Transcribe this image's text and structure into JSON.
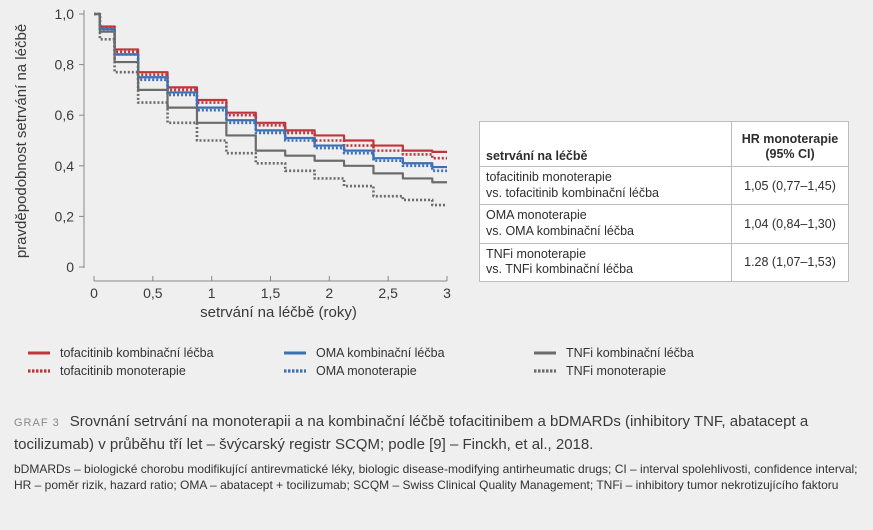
{
  "chart_data": {
    "type": "line",
    "xlabel": "setrvání na léčbě (roky)",
    "ylabel": "pravděpodobnost setrvání na léčbě",
    "xlim": [
      0,
      3
    ],
    "ylim": [
      0,
      1
    ],
    "x_ticks": [
      "0",
      "0,5",
      "1",
      "1,5",
      "2",
      "2,5",
      "3"
    ],
    "y_ticks": [
      "0",
      "0,2",
      "0,4",
      "0,6",
      "0,8",
      "1,0"
    ],
    "grid": false,
    "series": [
      {
        "name": "tofacitinib kombinační léčba",
        "color": "#c0343b",
        "style": "solid",
        "x": [
          0,
          0.1,
          0.25,
          0.5,
          0.75,
          1,
          1.25,
          1.5,
          1.75,
          2,
          2.25,
          2.5,
          2.75,
          3
        ],
        "y": [
          1.0,
          0.95,
          0.86,
          0.77,
          0.71,
          0.66,
          0.61,
          0.57,
          0.54,
          0.52,
          0.5,
          0.48,
          0.46,
          0.455
        ]
      },
      {
        "name": "tofacitinib monoterapie",
        "color": "#c0343b",
        "style": "dotted",
        "x": [
          0,
          0.1,
          0.25,
          0.5,
          0.75,
          1,
          1.25,
          1.5,
          1.75,
          2,
          2.25,
          2.5,
          2.75,
          3
        ],
        "y": [
          1.0,
          0.95,
          0.85,
          0.76,
          0.7,
          0.65,
          0.6,
          0.56,
          0.53,
          0.5,
          0.48,
          0.46,
          0.445,
          0.43
        ]
      },
      {
        "name": "OMA kombinační léčba",
        "color": "#3b6fb6",
        "style": "solid",
        "x": [
          0,
          0.1,
          0.25,
          0.5,
          0.75,
          1,
          1.25,
          1.5,
          1.75,
          2,
          2.25,
          2.5,
          2.75,
          3
        ],
        "y": [
          1.0,
          0.94,
          0.84,
          0.75,
          0.69,
          0.63,
          0.58,
          0.54,
          0.51,
          0.48,
          0.46,
          0.43,
          0.41,
          0.395
        ]
      },
      {
        "name": "OMA monoterapie",
        "color": "#3b6fb6",
        "style": "dotted",
        "x": [
          0,
          0.1,
          0.25,
          0.5,
          0.75,
          1,
          1.25,
          1.5,
          1.75,
          2,
          2.25,
          2.5,
          2.75,
          3
        ],
        "y": [
          1.0,
          0.94,
          0.84,
          0.74,
          0.68,
          0.62,
          0.57,
          0.53,
          0.5,
          0.47,
          0.45,
          0.42,
          0.4,
          0.38
        ]
      },
      {
        "name": "TNFi kombinační léčba",
        "color": "#6b6b6b",
        "style": "solid",
        "x": [
          0,
          0.1,
          0.25,
          0.5,
          0.75,
          1,
          1.25,
          1.5,
          1.75,
          2,
          2.25,
          2.5,
          2.75,
          3
        ],
        "y": [
          1.0,
          0.93,
          0.81,
          0.7,
          0.63,
          0.57,
          0.52,
          0.46,
          0.44,
          0.42,
          0.4,
          0.37,
          0.35,
          0.335
        ]
      },
      {
        "name": "TNFi monoterapie",
        "color": "#6b6b6b",
        "style": "dotted",
        "x": [
          0,
          0.1,
          0.25,
          0.5,
          0.75,
          1,
          1.25,
          1.5,
          1.75,
          2,
          2.25,
          2.5,
          2.75,
          3
        ],
        "y": [
          1.0,
          0.9,
          0.77,
          0.65,
          0.57,
          0.5,
          0.45,
          0.41,
          0.38,
          0.35,
          0.32,
          0.28,
          0.265,
          0.245
        ]
      }
    ]
  },
  "hr_table": {
    "col_treatment": "setrvání na léčbě",
    "col_hr_line1": "HR monoterapie",
    "col_hr_line2": "(95% CI)",
    "rows": [
      {
        "line1": "tofacitinib monoterapie",
        "line2": "vs. tofacitinib kombinační léčba",
        "hr": "1,05 (0,77–1,45)"
      },
      {
        "line1": "OMA monoterapie",
        "line2": "vs. OMA kombinační léčba",
        "hr": "1,04 (0,84–1,30)"
      },
      {
        "line1": "TNFi monoterapie",
        "line2": "vs. TNFi kombinační léčba",
        "hr": "1.28 (1,07–1,53)"
      }
    ]
  },
  "caption": {
    "label": "GRAF 3",
    "text": "Srovnání setrvání na monoterapii a na kombinační léčbě tofacitinibem a bDMARDs (inhibitory TNF, abatacept a tocilizumab) v průběhu tří let – švýcarský registr SCQM; podle [9] – Finckh, et al., 2018.",
    "note": "bDMARDs – biologické chorobu modifikující antirevmatické léky, biologic disease-modifying antirheumatic drugs; CI – interval spolehlivosti, confidence interval; HR – poměr rizik, hazard ratio; OMA – abatacept + tocilizumab; SCQM – Swiss Clinical Quality Management; TNFi – inhibitory tumor nekrotizujícího faktoru"
  }
}
